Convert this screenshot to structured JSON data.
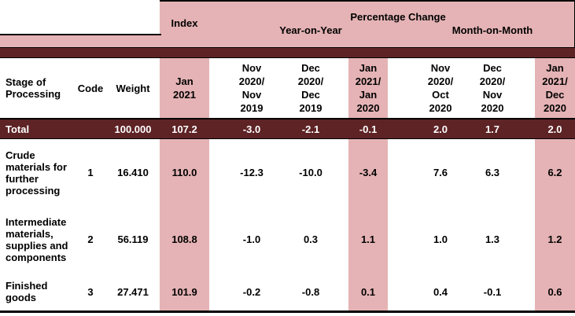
{
  "colors": {
    "highlight_pink": "#E5B3B5",
    "maroon": "#5E2325",
    "rule_black": "#000000",
    "total_row_text": "#FFFFFF"
  },
  "title_band": {
    "index": "Index",
    "percentage_change": "Percentage Change",
    "year_on_year": "Year-on-Year",
    "month_on_month": "Month-on-Month"
  },
  "column_headers": {
    "stage": "Stage of\nProcessing",
    "code": "Code",
    "weight": "Weight",
    "index_period": "Jan\n2021",
    "yoy_nov": "Nov\n2020/\nNov\n2019",
    "yoy_dec": "Dec\n2020/\nDec\n2019",
    "yoy_jan": "Jan\n2021/\nJan\n2020",
    "mom_nov": "Nov\n2020/\nOct\n2020",
    "mom_dec": "Dec\n2020/\nNov\n2020",
    "mom_jan": "Jan\n2021/\nDec\n2020"
  },
  "total_row": {
    "stage": "Total",
    "weight": "100.000",
    "index": "107.2",
    "yoy_nov": "-3.0",
    "yoy_dec": "-2.1",
    "yoy_jan": "-0.1",
    "mom_nov": "2.0",
    "mom_dec": "1.7",
    "mom_jan": "2.0"
  },
  "rows": [
    {
      "stage": "Crude\nmaterials for\nfurther\nprocessing",
      "code": "1",
      "weight": "16.410",
      "index": "110.0",
      "yoy_nov": "-12.3",
      "yoy_dec": "-10.0",
      "yoy_jan": "-3.4",
      "mom_nov": "7.6",
      "mom_dec": "6.3",
      "mom_jan": "6.2"
    },
    {
      "stage": "Intermediate\nmaterials,\nsupplies and\ncomponents",
      "code": "2",
      "weight": "56.119",
      "index": "108.8",
      "yoy_nov": "-1.0",
      "yoy_dec": "0.3",
      "yoy_jan": "1.1",
      "mom_nov": "1.0",
      "mom_dec": "1.3",
      "mom_jan": "1.2"
    },
    {
      "stage": "Finished\ngoods",
      "code": "3",
      "weight": "27.471",
      "index": "101.9",
      "yoy_nov": "-0.2",
      "yoy_dec": "-0.8",
      "yoy_jan": "0.1",
      "mom_nov": "0.4",
      "mom_dec": "-0.1",
      "mom_jan": "0.6"
    }
  ]
}
